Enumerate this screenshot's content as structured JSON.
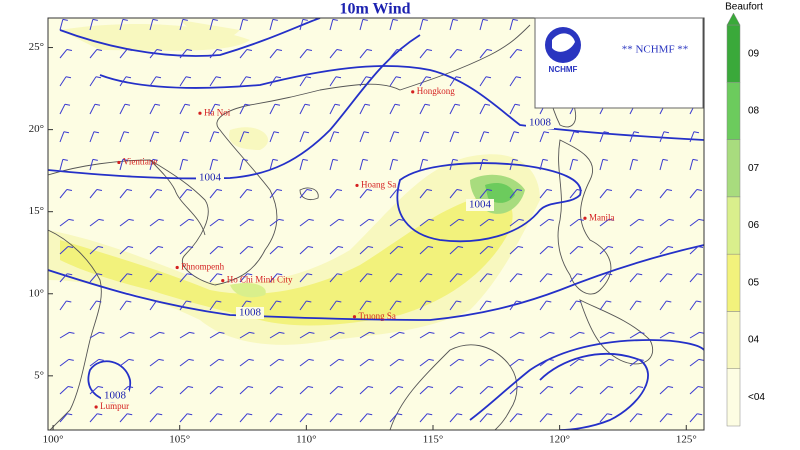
{
  "title": "10m Wind",
  "legend": {
    "title": "Beaufort",
    "levels": [
      {
        "label": "<04",
        "color": "#fdfde3"
      },
      {
        "label": "04",
        "color": "#f8f8bf"
      },
      {
        "label": "05",
        "color": "#f2f27c"
      },
      {
        "label": "06",
        "color": "#d9ef8c"
      },
      {
        "label": "07",
        "color": "#a8dc7e"
      },
      {
        "label": "08",
        "color": "#6ccb5d"
      },
      {
        "label": "09",
        "color": "#3aa93a"
      }
    ]
  },
  "logo": {
    "text": "** NCHMF **",
    "caption": "NCHMF"
  },
  "axes": {
    "xlim": [
      99.8,
      125.7
    ],
    "ylim": [
      1.7,
      26.8
    ],
    "xticks": [
      {
        "value": 100,
        "label": "100°"
      },
      {
        "value": 105,
        "label": "105°"
      },
      {
        "value": 110,
        "label": "110°"
      },
      {
        "value": 115,
        "label": "115°"
      },
      {
        "value": 120,
        "label": "120°"
      },
      {
        "value": 125,
        "label": "125°"
      }
    ],
    "yticks": [
      {
        "value": 5,
        "label": "5°"
      },
      {
        "value": 10,
        "label": "10°"
      },
      {
        "value": 15,
        "label": "15°"
      },
      {
        "value": 20,
        "label": "20°"
      },
      {
        "value": 25,
        "label": "25°"
      }
    ]
  },
  "cities": [
    "Hongkong",
    "Ha Noi",
    "Vientiane",
    "Hoang Sa",
    "Manila",
    "Phnompenh",
    "Ho Chi Minh City",
    "Truong Sa",
    "Lumpur"
  ],
  "isobar_labels": [
    "1004",
    "1004",
    "1008",
    "1008",
    "1008"
  ]
}
